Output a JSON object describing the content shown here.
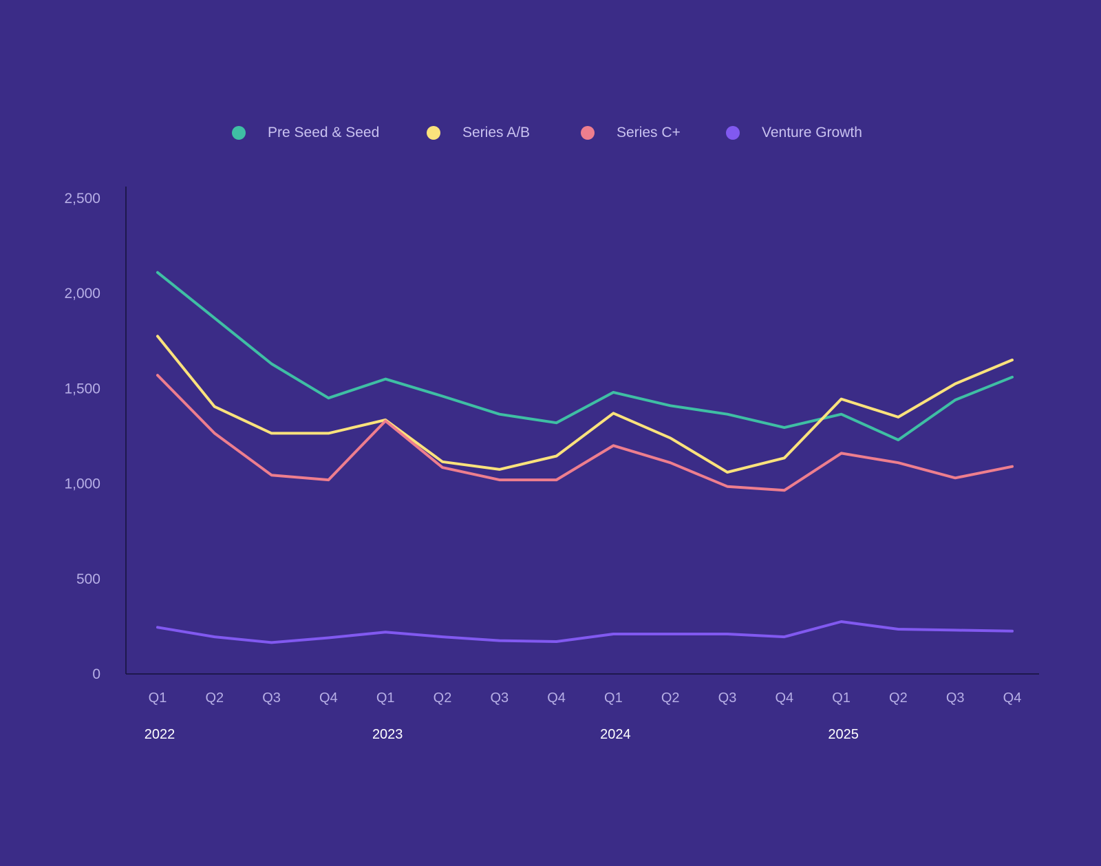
{
  "chart_data": {
    "type": "line",
    "title": "",
    "xlabel": "",
    "ylabel": "",
    "ylim": [
      0,
      2500
    ],
    "yticks": [
      0,
      500,
      1000,
      1500,
      2000,
      2500
    ],
    "ytick_labels": [
      "0",
      "500",
      "1,000",
      "1,500",
      "2,000",
      "2,500"
    ],
    "categories": [
      "Q1",
      "Q2",
      "Q3",
      "Q4",
      "Q1",
      "Q2",
      "Q3",
      "Q4",
      "Q1",
      "Q2",
      "Q3",
      "Q4",
      "Q1",
      "Q2",
      "Q3",
      "Q4"
    ],
    "year_labels": [
      {
        "label": "2022",
        "index": 0
      },
      {
        "label": "2023",
        "index": 4
      },
      {
        "label": "2024",
        "index": 8
      },
      {
        "label": "2025",
        "index": 12
      }
    ],
    "legend_position": "top-center",
    "grid": false,
    "series": [
      {
        "name": "Pre Seed & Seed",
        "color": "#3fbfa4",
        "values": [
          2110,
          1870,
          1630,
          1450,
          1550,
          1460,
          1365,
          1320,
          1480,
          1410,
          1365,
          1295,
          1365,
          1230,
          1440,
          1560
        ]
      },
      {
        "name": "Series A/B",
        "color": "#fbe27c",
        "values": [
          1775,
          1405,
          1265,
          1265,
          1335,
          1115,
          1075,
          1145,
          1370,
          1240,
          1060,
          1135,
          1445,
          1350,
          1525,
          1650
        ]
      },
      {
        "name": "Series C+",
        "color": "#ee7e8e",
        "values": [
          1570,
          1265,
          1045,
          1020,
          1330,
          1085,
          1020,
          1020,
          1200,
          1110,
          985,
          965,
          1160,
          1110,
          1030,
          1090
        ]
      },
      {
        "name": "Venture Growth",
        "color": "#8159f0",
        "values": [
          245,
          195,
          165,
          190,
          220,
          195,
          175,
          170,
          210,
          210,
          210,
          195,
          275,
          235,
          230,
          225
        ]
      }
    ]
  }
}
